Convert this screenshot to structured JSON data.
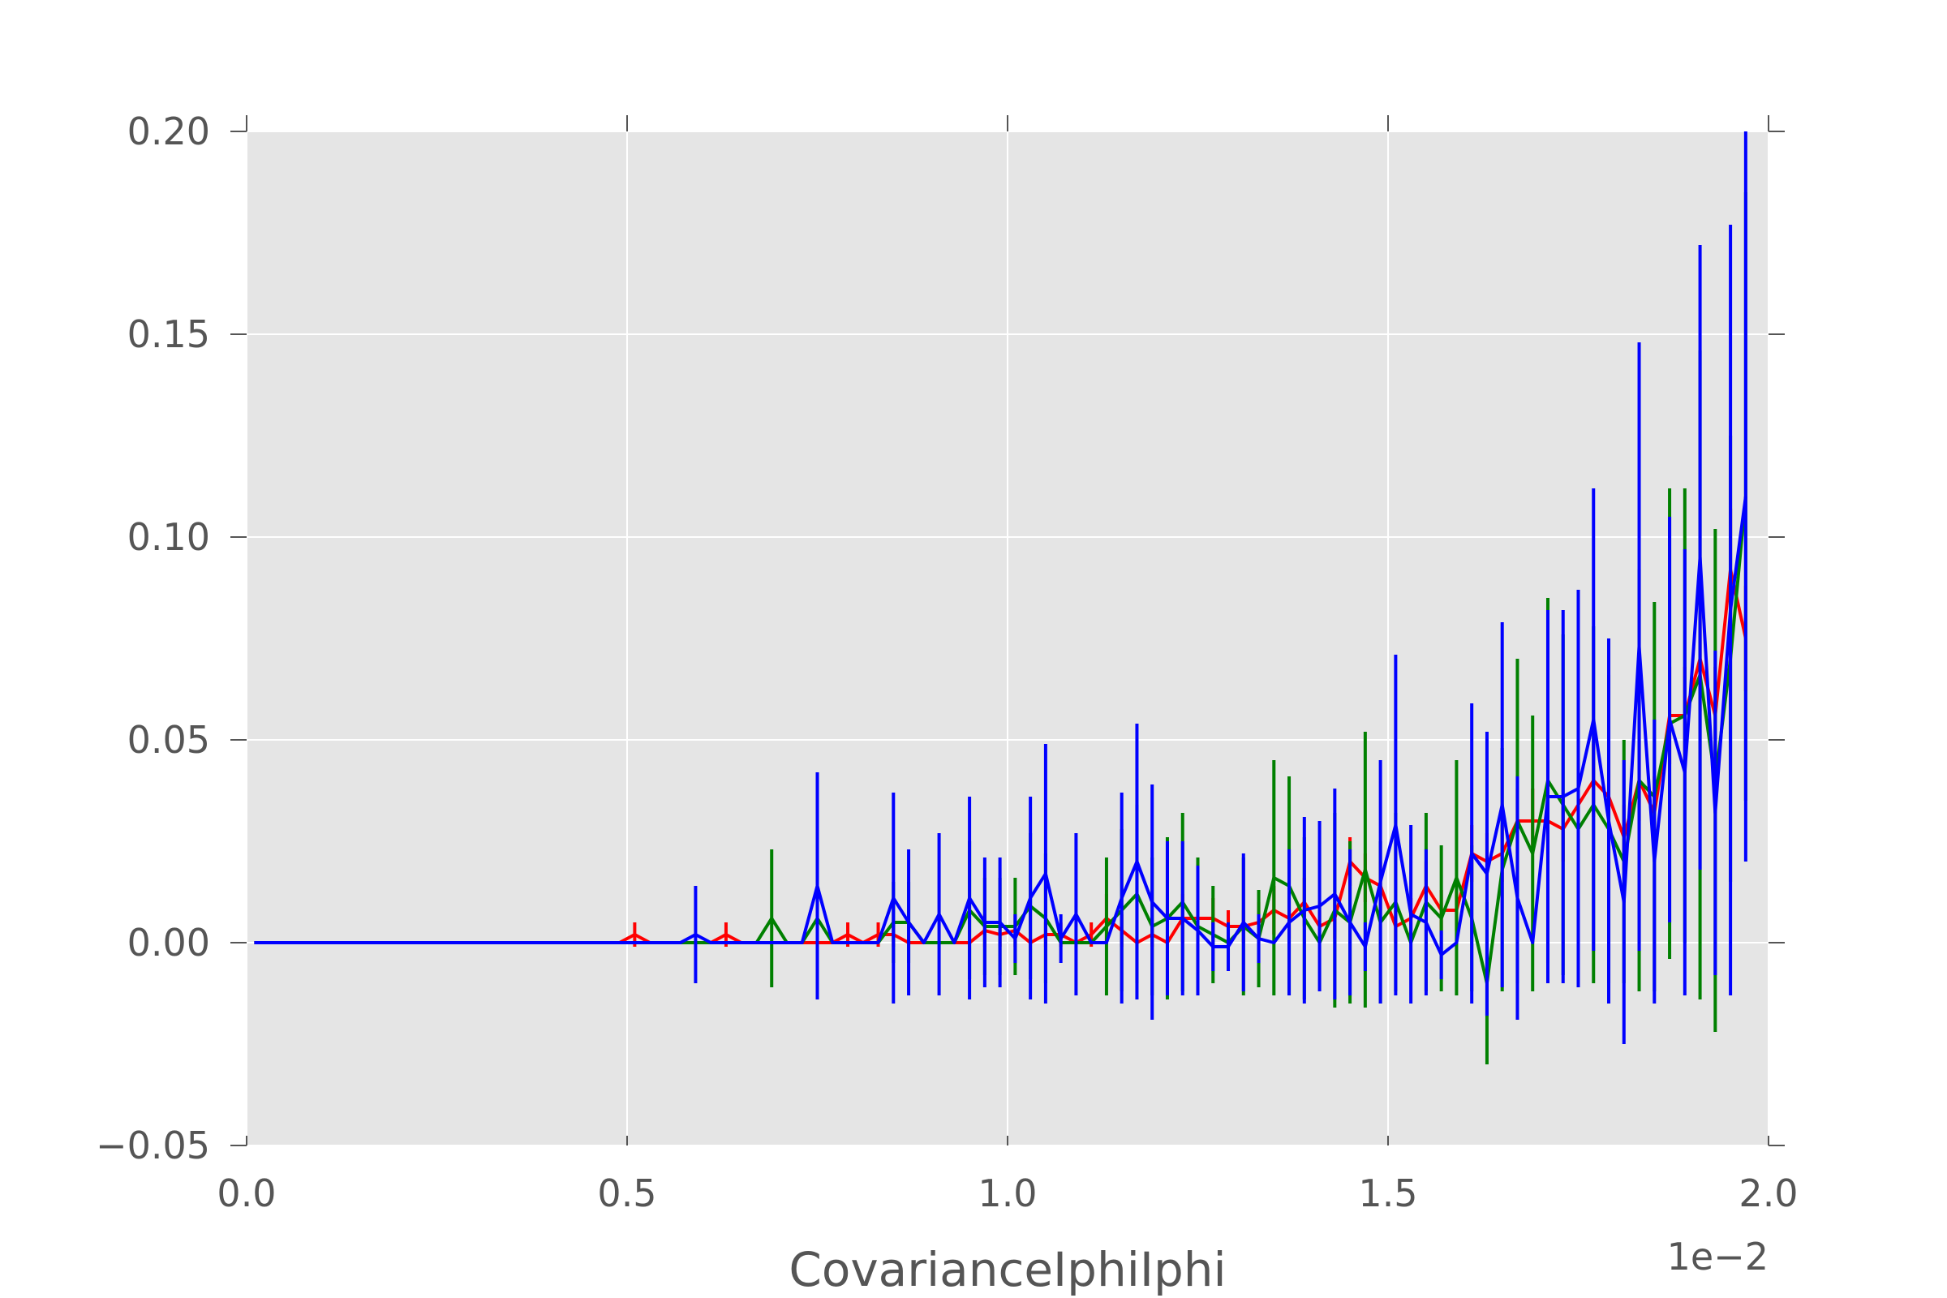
{
  "chart_data": {
    "type": "line",
    "title": "",
    "xlabel": "CovarianceIphiIphi",
    "ylabel": "",
    "x_offset_label": "1e−2",
    "xlim": [
      0.0,
      2.0
    ],
    "ylim": [
      -0.05,
      0.2
    ],
    "x_ticks": [
      0.0,
      0.5,
      1.0,
      1.5,
      2.0
    ],
    "x_tick_labels": [
      "0.0",
      "0.5",
      "1.0",
      "1.5",
      "2.0"
    ],
    "y_ticks": [
      -0.05,
      0.0,
      0.05,
      0.1,
      0.15,
      0.2
    ],
    "y_tick_labels": [
      "−0.05",
      "0.00",
      "0.05",
      "0.10",
      "0.15",
      "0.20"
    ],
    "grid": true,
    "background": "#e5e5e5",
    "legend": "none",
    "x": [
      0.01,
      0.03,
      0.05,
      0.07,
      0.09,
      0.11,
      0.13,
      0.15,
      0.17,
      0.19,
      0.21,
      0.23,
      0.25,
      0.27,
      0.29,
      0.31,
      0.33,
      0.35,
      0.37,
      0.39,
      0.41,
      0.43,
      0.45,
      0.47,
      0.49,
      0.51,
      0.53,
      0.55,
      0.57,
      0.59,
      0.61,
      0.63,
      0.65,
      0.67,
      0.69,
      0.71,
      0.73,
      0.75,
      0.77,
      0.79,
      0.81,
      0.83,
      0.85,
      0.87,
      0.89,
      0.91,
      0.93,
      0.95,
      0.97,
      0.99,
      1.01,
      1.03,
      1.05,
      1.07,
      1.09,
      1.11,
      1.13,
      1.15,
      1.17,
      1.19,
      1.21,
      1.23,
      1.25,
      1.27,
      1.29,
      1.31,
      1.33,
      1.35,
      1.37,
      1.39,
      1.41,
      1.43,
      1.45,
      1.47,
      1.49,
      1.51,
      1.53,
      1.55,
      1.57,
      1.59,
      1.61,
      1.63,
      1.65,
      1.67,
      1.69,
      1.71,
      1.73,
      1.75,
      1.77,
      1.79,
      1.81,
      1.83,
      1.85,
      1.87,
      1.89,
      1.91,
      1.93,
      1.95,
      1.97
    ],
    "series": [
      {
        "color": "#ff0000",
        "values": [
          0,
          0,
          0,
          0,
          0,
          0,
          0,
          0,
          0,
          0,
          0,
          0,
          0,
          0,
          0,
          0,
          0,
          0,
          0,
          0,
          0,
          0,
          0,
          0,
          0,
          0.002,
          0,
          0,
          0,
          0,
          0,
          0.002,
          0,
          0,
          0,
          0,
          0,
          0,
          0,
          0.002,
          0,
          0.002,
          0.002,
          0,
          0,
          0,
          0,
          0,
          0.003,
          0.002,
          0.003,
          0,
          0.002,
          0.002,
          0,
          0.002,
          0.006,
          0.003,
          0,
          0.002,
          0,
          0.006,
          0.006,
          0.006,
          0.004,
          0.004,
          0.005,
          0.008,
          0.006,
          0.01,
          0.004,
          0.006,
          0.02,
          0.016,
          0.014,
          0.004,
          0.006,
          0.014,
          0.008,
          0.008,
          0.022,
          0.02,
          0.022,
          0.03,
          0.03,
          0.03,
          0.028,
          0.034,
          0.04,
          0.036,
          0.026,
          0.04,
          0.032,
          0.056,
          0.056,
          0.07,
          0.056,
          0.092,
          0.075
        ],
        "errors": [
          0,
          0,
          0,
          0,
          0,
          0,
          0,
          0,
          0,
          0,
          0,
          0,
          0,
          0,
          0,
          0,
          0,
          0,
          0,
          0,
          0,
          0,
          0,
          0,
          0,
          0.003,
          0,
          0,
          0,
          0,
          0,
          0.003,
          0,
          0,
          0,
          0,
          0,
          0,
          0,
          0.003,
          0,
          0.003,
          0.003,
          0,
          0,
          0,
          0,
          0,
          0.004,
          0.003,
          0.004,
          0,
          0.003,
          0.003,
          0,
          0.003,
          0.006,
          0.004,
          0,
          0.003,
          0,
          0.006,
          0.005,
          0.005,
          0.004,
          0.004,
          0.005,
          0.006,
          0.005,
          0.006,
          0.004,
          0.005,
          0.006,
          0.006,
          0.006,
          0.004,
          0.005,
          0.006,
          0.005,
          0.005,
          0.007,
          0.007,
          0.007,
          0.008,
          0.008,
          0.008,
          0.008,
          0.009,
          0.009,
          0.009,
          0.008,
          0.01,
          0.009,
          0.012,
          0.012,
          0.013,
          0.012,
          0.015,
          0.013
        ]
      },
      {
        "color": "#008000",
        "values": [
          0,
          0,
          0,
          0,
          0,
          0,
          0,
          0,
          0,
          0,
          0,
          0,
          0,
          0,
          0,
          0,
          0,
          0,
          0,
          0,
          0,
          0,
          0,
          0,
          0,
          0,
          0,
          0,
          0,
          0,
          0,
          0,
          0,
          0,
          0.006,
          0,
          0,
          0.006,
          0,
          0,
          0,
          0,
          0.005,
          0.005,
          0,
          0,
          0,
          0.008,
          0.004,
          0.004,
          0.004,
          0.009,
          0.006,
          0,
          0,
          0,
          0.004,
          0.008,
          0.012,
          0.004,
          0.006,
          0.01,
          0.004,
          0.002,
          0,
          0.004,
          0.001,
          0.016,
          0.014,
          0.006,
          0,
          0.008,
          0.005,
          0.018,
          0.005,
          0.01,
          0,
          0.01,
          0.006,
          0.016,
          0.006,
          -0.01,
          0.018,
          0.03,
          0.022,
          0.04,
          0.034,
          0.028,
          0.034,
          0.028,
          0.02,
          0.04,
          0.036,
          0.054,
          0.056,
          0.066,
          0.04,
          0.07,
          0.11
        ],
        "errors": [
          0,
          0,
          0,
          0,
          0,
          0,
          0,
          0,
          0,
          0,
          0,
          0,
          0,
          0,
          0,
          0,
          0,
          0,
          0,
          0,
          0,
          0,
          0,
          0,
          0,
          0,
          0,
          0,
          0,
          0,
          0,
          0,
          0,
          0,
          0.017,
          0,
          0,
          0.017,
          0,
          0,
          0,
          0,
          0.01,
          0.01,
          0,
          0,
          0,
          0.017,
          0.012,
          0.012,
          0.012,
          0.018,
          0.016,
          0,
          0,
          0,
          0.017,
          0.02,
          0.022,
          0.017,
          0.02,
          0.022,
          0.017,
          0.012,
          0,
          0.017,
          0.012,
          0.029,
          0.027,
          0.02,
          0,
          0.024,
          0.02,
          0.034,
          0.02,
          0.022,
          0,
          0.022,
          0.018,
          0.029,
          0.018,
          0.02,
          0.03,
          0.04,
          0.034,
          0.045,
          0.042,
          0.038,
          0.044,
          0.038,
          0.03,
          0.052,
          0.048,
          0.058,
          0.056,
          0.08,
          0.062,
          0.055,
          0.075
        ]
      },
      {
        "color": "#0000ff",
        "values": [
          0,
          0,
          0,
          0,
          0,
          0,
          0,
          0,
          0,
          0,
          0,
          0,
          0,
          0,
          0,
          0,
          0,
          0,
          0,
          0,
          0,
          0,
          0,
          0,
          0,
          0,
          0,
          0,
          0,
          0.002,
          0,
          0,
          0,
          0,
          0,
          0,
          0,
          0.014,
          0,
          0,
          0,
          0,
          0.011,
          0.005,
          0,
          0.007,
          0,
          0.011,
          0.005,
          0.005,
          0.001,
          0.011,
          0.017,
          0.001,
          0.007,
          0,
          0,
          0.011,
          0.02,
          0.01,
          0.006,
          0.006,
          0.003,
          -0.001,
          -0.001,
          0.005,
          0.001,
          0,
          0.005,
          0.008,
          0.009,
          0.012,
          0.005,
          -0.001,
          0.015,
          0.029,
          0.007,
          0.005,
          -0.003,
          0,
          0.022,
          0.017,
          0.034,
          0.011,
          0,
          0.036,
          0.036,
          0.038,
          0.055,
          0.03,
          0.01,
          0.073,
          0.02,
          0.055,
          0.042,
          0.095,
          0.032,
          0.082,
          0.11
        ],
        "errors": [
          0,
          0,
          0,
          0,
          0,
          0,
          0,
          0,
          0,
          0,
          0,
          0,
          0,
          0,
          0,
          0,
          0,
          0,
          0,
          0,
          0,
          0,
          0,
          0,
          0,
          0,
          0,
          0,
          0,
          0.012,
          0,
          0,
          0,
          0,
          0,
          0,
          0,
          0.028,
          0,
          0,
          0,
          0,
          0.026,
          0.018,
          0,
          0.02,
          0,
          0.025,
          0.016,
          0.016,
          0.006,
          0.025,
          0.032,
          0.006,
          0.02,
          0,
          0,
          0.026,
          0.034,
          0.029,
          0.019,
          0.019,
          0.016,
          0.006,
          0.006,
          0.017,
          0.006,
          0,
          0.018,
          0.023,
          0.021,
          0.026,
          0.018,
          0.006,
          0.03,
          0.042,
          0.022,
          0.018,
          0.006,
          0,
          0.037,
          0.035,
          0.045,
          0.03,
          0,
          0.046,
          0.046,
          0.049,
          0.057,
          0.045,
          0.035,
          0.075,
          0.035,
          0.05,
          0.055,
          0.077,
          0.04,
          0.095,
          0.09
        ]
      }
    ]
  }
}
